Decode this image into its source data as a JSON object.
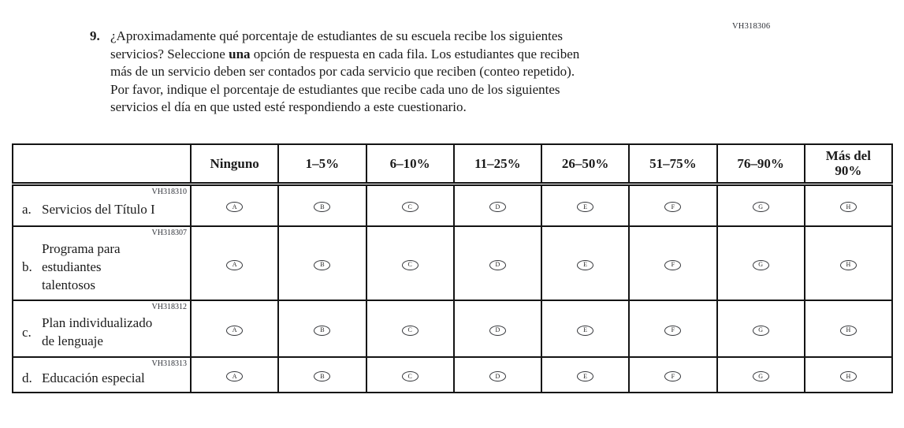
{
  "page": {
    "form_code": "VH318306"
  },
  "question": {
    "number": "9.",
    "lines": [
      [
        {
          "t": "¿Aproximadamente qué porcentaje de estudiantes de su escuela recibe los siguientes"
        }
      ],
      [
        {
          "t": "servicios? Seleccione "
        },
        {
          "t": "una",
          "b": true
        },
        {
          "t": " opción de respuesta en cada fila. Los estudiantes que reciben"
        }
      ],
      [
        {
          "t": "más de un servicio deben ser contados por cada servicio que reciben (conteo repetido)."
        }
      ],
      [
        {
          "t": "Por favor, indique el porcentaje de estudiantes que recibe cada uno de los siguientes"
        }
      ],
      [
        {
          "t": "servicios el día en que usted esté respondiendo a este cuestionario."
        }
      ]
    ]
  },
  "table": {
    "column_headers": [
      "",
      "Ninguno",
      "1–5%",
      "6–10%",
      "11–25%",
      "26–50%",
      "51–75%",
      "76–90%",
      "Más del\n90%"
    ],
    "option_letters": [
      "A",
      "B",
      "C",
      "D",
      "E",
      "F",
      "G",
      "H"
    ],
    "rows": [
      {
        "letter": "a.",
        "label": "Servicios del Título I",
        "code": "VH318310"
      },
      {
        "letter": "b.",
        "label": "Programa para\nestudiantes\ntalentosos",
        "code": "VH318307"
      },
      {
        "letter": "c.",
        "label": "Plan individualizado\nde lenguaje",
        "code": "VH318312"
      },
      {
        "letter": "d.",
        "label": "Educación especial",
        "code": "VH318313"
      }
    ]
  },
  "colors": {
    "text": "#1b1b1b",
    "border": "#141414",
    "code_text": "#2c2f36",
    "background": "#ffffff"
  }
}
